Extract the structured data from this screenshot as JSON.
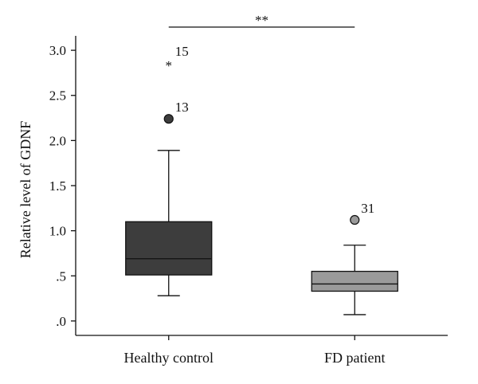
{
  "chart_data": {
    "type": "boxplot",
    "ylabel": "Relative level of GDNF",
    "xlabel": "",
    "ylim": [
      -0.16,
      3.16
    ],
    "yticks": [
      0.0,
      0.5,
      1.0,
      1.5,
      2.0,
      2.5,
      3.0
    ],
    "ytick_labels": [
      ".0",
      ".5",
      "1.0",
      "1.5",
      "2.0",
      "2.5",
      "3.0"
    ],
    "categories": [
      "Healthy control",
      "FD patient"
    ],
    "groups": [
      {
        "name": "Healthy control",
        "min": 0.28,
        "q1": 0.51,
        "median": 0.69,
        "q3": 1.1,
        "max": 1.89,
        "color": "#3d3d3d",
        "outliers": [
          {
            "value": 2.24,
            "label": "13",
            "marker": "circle"
          },
          {
            "value": 2.86,
            "label": "15",
            "marker": "star"
          }
        ]
      },
      {
        "name": "FD patient",
        "min": 0.07,
        "q1": 0.33,
        "median": 0.41,
        "q3": 0.55,
        "max": 0.84,
        "color": "#9a9a9a",
        "outliers": [
          {
            "value": 1.12,
            "label": "31",
            "marker": "circle"
          }
        ]
      }
    ],
    "significance": {
      "label": "**",
      "from": 0,
      "to": 1
    },
    "grid": false
  }
}
